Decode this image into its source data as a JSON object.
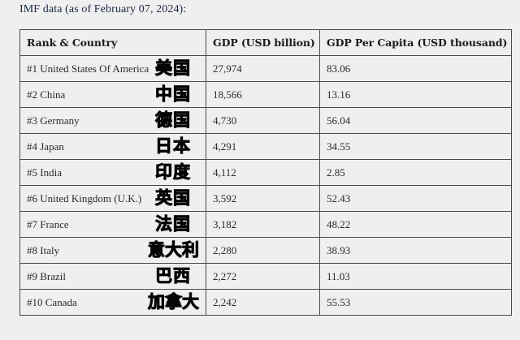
{
  "caption": "IMF data (as of February 07, 2024):",
  "table": {
    "headers": [
      "Rank & Country",
      "GDP (USD billion)",
      "GDP Per Capita (USD thousand)"
    ],
    "rows": [
      {
        "rank_country": "#1 United States Of America",
        "zh": "美国",
        "gdp": "27,974",
        "per_capita": "83.06"
      },
      {
        "rank_country": "#2 China",
        "zh": "中国",
        "gdp": "18,566",
        "per_capita": "13.16"
      },
      {
        "rank_country": "#3 Germany",
        "zh": "德国",
        "gdp": "4,730",
        "per_capita": "56.04"
      },
      {
        "rank_country": "#4 Japan",
        "zh": "日本",
        "gdp": "4,291",
        "per_capita": "34.55"
      },
      {
        "rank_country": "#5 India",
        "zh": "印度",
        "gdp": "4,112",
        "per_capita": "2.85"
      },
      {
        "rank_country": "#6 United Kingdom (U.K.)",
        "zh": "英国",
        "gdp": "3,592",
        "per_capita": "52.43"
      },
      {
        "rank_country": "#7 France",
        "zh": "法国",
        "gdp": "3,182",
        "per_capita": "48.22"
      },
      {
        "rank_country": "#8 Italy",
        "zh": "意大利",
        "gdp": "2,280",
        "per_capita": "38.93"
      },
      {
        "rank_country": "#9 Brazil",
        "zh": "巴西",
        "gdp": "2,272",
        "per_capita": "11.03"
      },
      {
        "rank_country": "#10 Canada",
        "zh": "加拿大",
        "gdp": "2,242",
        "per_capita": "55.53"
      }
    ]
  }
}
